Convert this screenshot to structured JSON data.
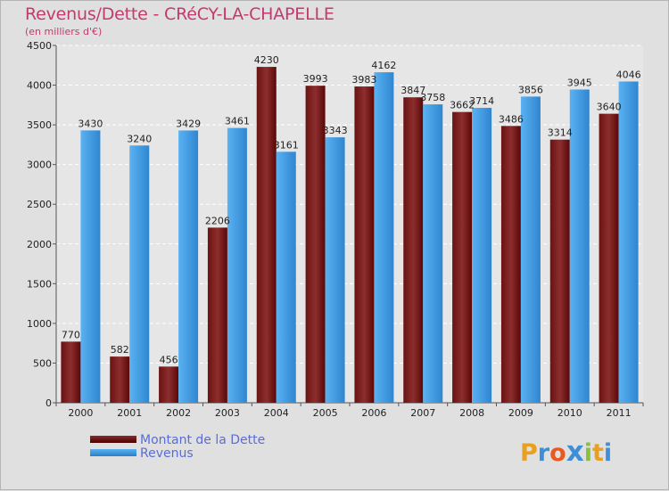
{
  "title": "Revenus/Dette - CRéCY-LA-CHAPELLE",
  "subtitle": "(en milliers d'€)",
  "chart_data": {
    "type": "bar",
    "categories": [
      "2000",
      "2001",
      "2002",
      "2003",
      "2004",
      "2005",
      "2006",
      "2007",
      "2008",
      "2009",
      "2010",
      "2011"
    ],
    "series": [
      {
        "name": "Montant de la Dette",
        "values": [
          770,
          582,
          456,
          2206,
          4230,
          3993,
          3983,
          3847,
          3662,
          3486,
          3314,
          3640
        ],
        "color": "#7a1a1a"
      },
      {
        "name": "Revenus",
        "values": [
          3430,
          3240,
          3429,
          3461,
          3161,
          3343,
          4162,
          3758,
          3714,
          3856,
          3945,
          4046
        ],
        "color": "#3d9be3"
      }
    ],
    "yticks": [
      0,
      500,
      1000,
      1500,
      2000,
      2500,
      3000,
      3500,
      4000,
      4500
    ],
    "ylim": [
      0,
      4500
    ],
    "grid": true,
    "legend_position": "bottom-left"
  },
  "legend": {
    "debt_label": "Montant de la Dette",
    "revenue_label": "Revenus"
  },
  "logo": {
    "letters": [
      "P",
      "r",
      "o",
      "x",
      "i",
      "t",
      "i"
    ],
    "colors": [
      "#e8a020",
      "#3c8fd8",
      "#e85a20",
      "#3c8fd8",
      "#88c040",
      "#e8a020",
      "#3c8fd8"
    ]
  }
}
